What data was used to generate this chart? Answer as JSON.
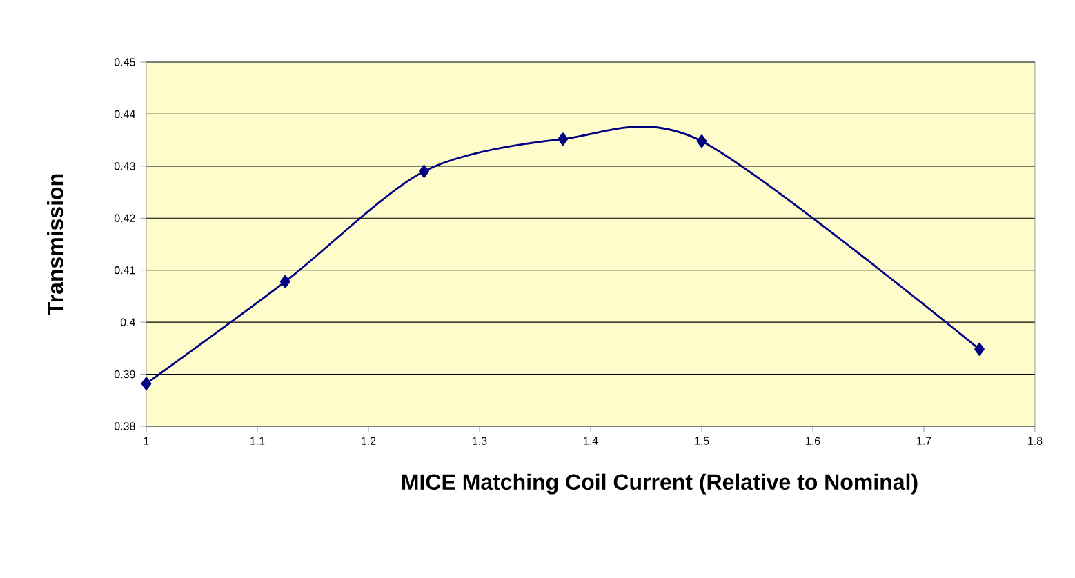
{
  "chart_data": {
    "type": "line",
    "xlabel": "MICE Matching Coil Current (Relative to Nominal)",
    "ylabel": "Transmission",
    "x": [
      1,
      1.125,
      1.25,
      1.375,
      1.5,
      1.75
    ],
    "series": [
      {
        "color": "#000080",
        "values": [
          0.3882,
          0.4078,
          0.429,
          0.4352,
          0.4348,
          0.3948
        ]
      }
    ],
    "xlim": [
      1,
      1.8
    ],
    "xticks": [
      1,
      1.1,
      1.2,
      1.3,
      1.4,
      1.5,
      1.6,
      1.7,
      1.8
    ],
    "ylim": [
      0.38,
      0.45
    ],
    "yticks": [
      0.38,
      0.39,
      0.4,
      0.41,
      0.42,
      0.43,
      0.44,
      0.45
    ],
    "grid": "y",
    "marker": "diamond",
    "line_style": "solid"
  }
}
